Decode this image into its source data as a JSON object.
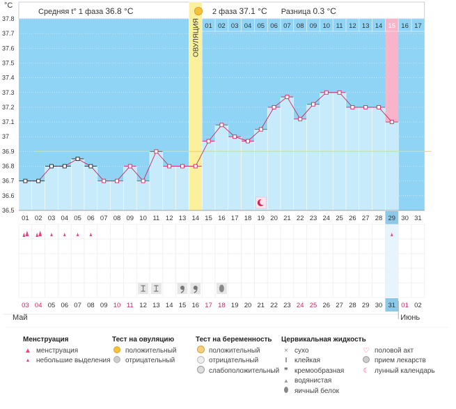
{
  "header": {
    "y_unit": "°C",
    "phase1_label": "Средняя t° 1 фаза",
    "phase1_value": "36.8 °C",
    "phase2_label": "2 фаза",
    "phase2_value": "37.1 °C",
    "diff_label": "Разница",
    "diff_value": "0.3 °C"
  },
  "ovulation_label": "ОВУЛЯЦИЯ",
  "colors": {
    "sky": "#8fd4f4",
    "fill": "#c8ebfb",
    "line": "#d0265a",
    "ovulation": "#fbf09c",
    "highlight_pink": "#f8b4c8",
    "mark_blue": "#8cc8e8",
    "coverline": "#f0e040",
    "red_text": "#d0265a"
  },
  "chart_data": {
    "type": "line",
    "title": "",
    "ylim": [
      36.5,
      37.8
    ],
    "y_ticks": [
      "37.8",
      "37.7",
      "37.6",
      "37.5",
      "37.4",
      "37.3",
      "37.2",
      "37.1",
      "37",
      "36.9",
      "36.8",
      "36.7",
      "36.6",
      "36.5"
    ],
    "cycle_days": [
      "01",
      "02",
      "03",
      "04",
      "05",
      "06",
      "07",
      "08",
      "09",
      "10",
      "11",
      "12",
      "13",
      "14",
      "15",
      "16",
      "17",
      "18",
      "19",
      "20",
      "21",
      "22",
      "23",
      "24",
      "25",
      "26",
      "27",
      "28",
      "29",
      "30",
      "31"
    ],
    "phase2_days": [
      "01",
      "02",
      "03",
      "04",
      "05",
      "06",
      "07",
      "08",
      "09",
      "10",
      "11",
      "12",
      "13",
      "14",
      "15",
      "16",
      "17"
    ],
    "temperatures": [
      36.7,
      36.7,
      36.8,
      36.8,
      36.85,
      36.8,
      36.7,
      36.7,
      36.8,
      36.7,
      36.9,
      36.8,
      36.8,
      36.8,
      36.97,
      37.08,
      37.0,
      36.97,
      37.05,
      37.2,
      37.27,
      37.12,
      37.22,
      37.3,
      37.3,
      37.2,
      37.2,
      37.2,
      37.1
    ],
    "coverline": 36.9,
    "ovulation_day": 14,
    "current_day": 29,
    "dates": [
      "03",
      "04",
      "05",
      "06",
      "07",
      "08",
      "09",
      "10",
      "11",
      "12",
      "13",
      "14",
      "15",
      "16",
      "17",
      "18",
      "19",
      "20",
      "21",
      "22",
      "23",
      "24",
      "25",
      "26",
      "27",
      "28",
      "29",
      "30",
      "31",
      "01",
      "02"
    ],
    "red_dates": [
      0,
      1,
      7,
      8,
      14,
      15,
      21,
      22,
      29
    ],
    "months": [
      "Май",
      "Июнь"
    ],
    "menstruation": [
      1,
      1,
      2,
      2,
      2,
      2,
      0,
      0,
      0,
      0,
      0,
      0,
      0,
      0,
      0,
      0,
      0,
      0,
      0,
      0,
      0,
      0,
      0,
      0,
      0,
      0,
      0,
      0,
      2,
      0,
      0
    ],
    "cervical": {
      "9": "sticky",
      "10": "sticky",
      "12": "creamy",
      "13": "creamy",
      "15": "eggwhite"
    },
    "moon_day": 19
  },
  "legend": {
    "menstruation": {
      "title": "Менструация",
      "items": [
        "менструация",
        "небольшие выделения"
      ]
    },
    "ovulation_test": {
      "title": "Тест на овуляцию",
      "items": [
        "положительный",
        "отрицательный"
      ]
    },
    "pregnancy_test": {
      "title": "Тест на беременность",
      "items": [
        "положительный",
        "отрицательный",
        "слабоположительный"
      ]
    },
    "cervical": {
      "title": "Цервикальная жидкость",
      "items": [
        "сухо",
        "клейкая",
        "кремообразная",
        "водянистая",
        "яичный белок"
      ]
    },
    "other": {
      "items": [
        "половой акт",
        "прием лекарств",
        "лунный календарь"
      ]
    }
  }
}
